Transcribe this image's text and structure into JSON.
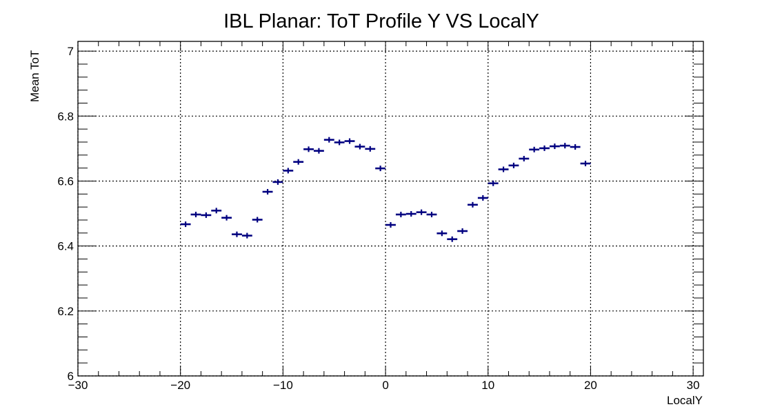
{
  "chart_data": {
    "type": "scatter",
    "title": "IBL Planar: ToT Profile Y VS LocalY",
    "xlabel": "LocalY",
    "ylabel": "Mean ToT",
    "xlim": [
      -30,
      31
    ],
    "ylim": [
      6.0,
      7.03
    ],
    "grid": true,
    "x_ticks": [
      -30,
      -20,
      -10,
      0,
      10,
      20,
      30
    ],
    "x_tick_labels": [
      "−30",
      "−20",
      "−10",
      "0",
      "10",
      "20",
      "30"
    ],
    "y_ticks": [
      6.0,
      6.2,
      6.4,
      6.6,
      6.8,
      7.0
    ],
    "y_tick_labels": [
      "6",
      "6.2",
      "6.4",
      "6.6",
      "6.8",
      "7"
    ],
    "bin_width": 1,
    "marker_color": "#000080",
    "series": [
      {
        "x": [
          -19.5,
          -18.5,
          -17.5,
          -16.5,
          -15.5,
          -14.5,
          -13.5,
          -12.5,
          -11.5,
          -10.5,
          -9.5,
          -8.5,
          -7.5,
          -6.5,
          -5.5,
          -4.5,
          -3.5,
          -2.5,
          -1.5,
          -0.5,
          0.5,
          1.5,
          2.5,
          3.5,
          4.5,
          5.5,
          6.5,
          7.5,
          8.5,
          9.5,
          10.5,
          11.5,
          12.5,
          13.5,
          14.5,
          15.5,
          16.5,
          17.5,
          18.5,
          19.5
        ],
        "y": [
          6.467,
          6.497,
          6.495,
          6.509,
          6.487,
          6.436,
          6.432,
          6.481,
          6.567,
          6.597,
          6.632,
          6.659,
          6.698,
          6.693,
          6.727,
          6.719,
          6.723,
          6.706,
          6.699,
          6.639,
          6.465,
          6.497,
          6.499,
          6.504,
          6.497,
          6.439,
          6.421,
          6.446,
          6.527,
          6.548,
          6.593,
          6.636,
          6.648,
          6.669,
          6.697,
          6.701,
          6.707,
          6.709,
          6.705,
          6.654
        ]
      }
    ]
  }
}
